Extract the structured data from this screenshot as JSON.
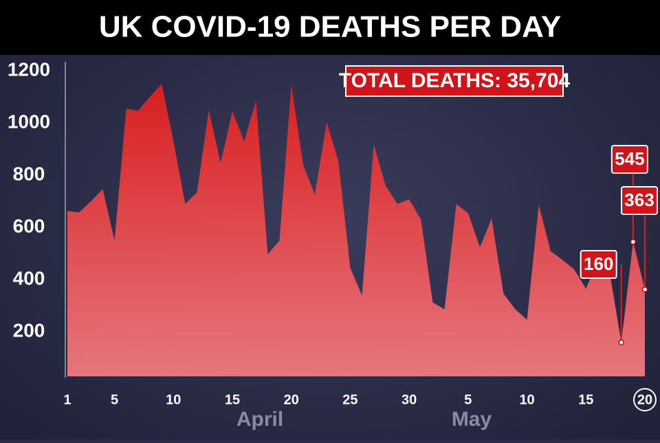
{
  "chart_data": {
    "type": "area",
    "title": "UK COVID-19 DEATHS PER DAY",
    "annotation": "TOTAL DEATHS: 35,704",
    "months": [
      "April",
      "May"
    ],
    "categories": [
      "1",
      null,
      null,
      null,
      "5",
      null,
      null,
      null,
      null,
      "10",
      null,
      null,
      null,
      null,
      "15",
      null,
      null,
      null,
      null,
      "20",
      null,
      null,
      null,
      null,
      "25",
      null,
      null,
      null,
      null,
      "30",
      null,
      null,
      null,
      null,
      "5",
      null,
      null,
      null,
      null,
      "10",
      null,
      null,
      null,
      null,
      "15",
      null,
      null,
      null,
      null,
      "20"
    ],
    "values": [
      663,
      658,
      700,
      747,
      550,
      1055,
      1047,
      1100,
      1150,
      930,
      690,
      735,
      1050,
      847,
      1045,
      930,
      1085,
      497,
      550,
      1150,
      840,
      726,
      1003,
      853,
      445,
      340,
      918,
      760,
      690,
      708,
      630,
      313,
      287,
      690,
      655,
      524,
      634,
      347,
      287,
      247,
      687,
      510,
      476,
      440,
      366,
      471,
      432,
      160,
      545,
      363
    ],
    "value_labels": [
      null,
      null,
      null,
      null,
      null,
      null,
      null,
      null,
      null,
      null,
      null,
      null,
      null,
      null,
      null,
      null,
      null,
      null,
      null,
      null,
      null,
      null,
      null,
      null,
      null,
      null,
      null,
      null,
      null,
      null,
      null,
      null,
      null,
      null,
      null,
      null,
      null,
      null,
      null,
      null,
      null,
      null,
      null,
      null,
      null,
      null,
      null,
      "160",
      "545",
      "363"
    ],
    "color": "#e01e1e",
    "ylim": [
      30,
      1230
    ],
    "yticks": [
      200,
      400,
      600,
      800,
      1000,
      1200
    ]
  }
}
